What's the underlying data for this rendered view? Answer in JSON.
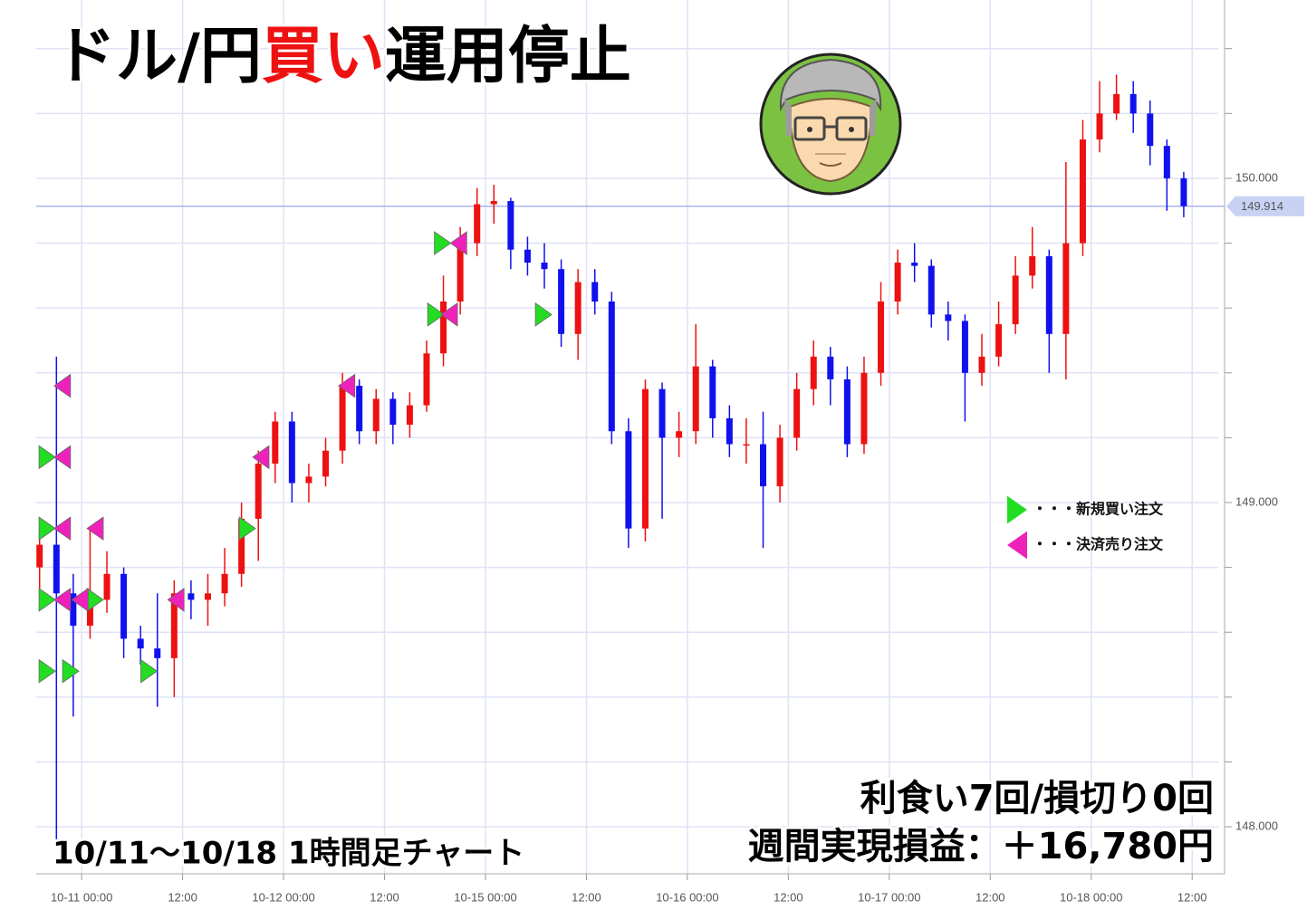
{
  "chart_data": {
    "type": "candlestick",
    "title_segments": [
      "ドル/円",
      "買い",
      "運用停止"
    ],
    "title_colors": [
      "#000000",
      "#ee1111",
      "#000000"
    ],
    "subtitle": "10/11〜10/18  1時間足チャート",
    "annotations": [
      "利食い7回/損切り0回",
      "週間実現損益：＋16,780円"
    ],
    "up_color": "#ee1111",
    "down_color": "#1111ee",
    "grid": true,
    "xlim": [
      -5.4,
      135.1
    ],
    "xticks": [
      {
        "value": 0,
        "label": "10-11 00:00"
      },
      {
        "value": 12,
        "label": "12:00"
      },
      {
        "value": 24,
        "label": "10-12 00:00"
      },
      {
        "value": 36,
        "label": "12:00"
      },
      {
        "value": 48,
        "label": "10-15 00:00"
      },
      {
        "value": 60,
        "label": "12:00"
      },
      {
        "value": 72,
        "label": "10-16 00:00"
      },
      {
        "value": 84,
        "label": "12:00"
      },
      {
        "value": 96,
        "label": "10-17 00:00"
      },
      {
        "value": 108,
        "label": "12:00"
      },
      {
        "value": 120,
        "label": "10-18 00:00"
      },
      {
        "value": 132,
        "label": "12:00"
      }
    ],
    "ylim": [
      147.855,
      150.55
    ],
    "yticks": [
      {
        "value": 148,
        "label": "148.000"
      },
      {
        "value": 149,
        "label": "149.000"
      },
      {
        "value": 150,
        "label": "150.000"
      }
    ],
    "y_gridlines": [
      148.2,
      148.4,
      148.6,
      148.8,
      149.2,
      149.4,
      149.6,
      149.8,
      150.2,
      150.4
    ],
    "current_price": 149.914,
    "x": [
      -5,
      -3,
      -1,
      1,
      3,
      5,
      7,
      9,
      11,
      13,
      15,
      17,
      19,
      21,
      23,
      25,
      27,
      29,
      31,
      33,
      35,
      37,
      39,
      41,
      43,
      45,
      47,
      49,
      51,
      53,
      55,
      57,
      59,
      61,
      63,
      65,
      67,
      69,
      71,
      73,
      75,
      77,
      79,
      81,
      83,
      85,
      87,
      89,
      91,
      93,
      95,
      97,
      99,
      101,
      103,
      105,
      107,
      109,
      111,
      113,
      115,
      117,
      119,
      121,
      123,
      125,
      127,
      129,
      131
    ],
    "open": [
      148.8,
      148.87,
      148.72,
      148.62,
      148.7,
      148.78,
      148.58,
      148.55,
      148.52,
      148.72,
      148.7,
      148.72,
      148.78,
      148.95,
      149.12,
      149.25,
      149.06,
      149.08,
      149.16,
      149.36,
      149.22,
      149.32,
      149.24,
      149.3,
      149.46,
      149.62,
      149.8,
      149.92,
      149.93,
      149.78,
      149.74,
      149.72,
      149.52,
      149.68,
      149.62,
      149.22,
      148.92,
      149.35,
      149.2,
      149.22,
      149.42,
      149.26,
      149.18,
      149.18,
      149.05,
      149.2,
      149.35,
      149.45,
      149.38,
      149.18,
      149.4,
      149.62,
      149.74,
      149.73,
      149.58,
      149.56,
      149.4,
      149.45,
      149.55,
      149.7,
      149.76,
      149.52,
      149.8,
      150.12,
      150.2,
      150.26,
      150.2,
      150.1,
      150.0
    ],
    "high": [
      148.92,
      149.45,
      148.78,
      148.92,
      148.85,
      148.8,
      148.62,
      148.72,
      148.76,
      148.76,
      148.78,
      148.86,
      149.0,
      149.16,
      149.28,
      149.28,
      149.12,
      149.2,
      149.4,
      149.38,
      149.35,
      149.34,
      149.34,
      149.5,
      149.7,
      149.85,
      149.97,
      149.98,
      149.94,
      149.82,
      149.8,
      149.75,
      149.72,
      149.72,
      149.65,
      149.26,
      149.38,
      149.37,
      149.28,
      149.55,
      149.44,
      149.3,
      149.26,
      149.28,
      149.24,
      149.4,
      149.5,
      149.48,
      149.42,
      149.45,
      149.68,
      149.78,
      149.8,
      149.75,
      149.62,
      149.58,
      149.52,
      149.62,
      149.76,
      149.85,
      149.78,
      150.05,
      150.18,
      150.3,
      150.32,
      150.3,
      150.24,
      150.12,
      150.02
    ],
    "low": [
      148.72,
      147.95,
      148.34,
      148.58,
      148.66,
      148.52,
      148.5,
      148.37,
      148.4,
      148.64,
      148.62,
      148.68,
      148.74,
      148.82,
      149.06,
      149.0,
      149.0,
      149.05,
      149.12,
      149.18,
      149.18,
      149.18,
      149.2,
      149.28,
      149.42,
      149.58,
      149.76,
      149.86,
      149.72,
      149.7,
      149.66,
      149.48,
      149.44,
      149.58,
      149.18,
      148.86,
      148.88,
      148.95,
      149.14,
      149.18,
      149.2,
      149.14,
      149.12,
      148.86,
      149.0,
      149.16,
      149.3,
      149.3,
      149.14,
      149.15,
      149.36,
      149.58,
      149.68,
      149.54,
      149.5,
      149.25,
      149.36,
      149.42,
      149.52,
      149.66,
      149.4,
      149.38,
      149.76,
      150.08,
      150.18,
      150.14,
      150.04,
      149.9,
      149.88
    ],
    "close": [
      148.87,
      148.72,
      148.62,
      148.7,
      148.78,
      148.58,
      148.55,
      148.52,
      148.72,
      148.7,
      148.72,
      148.78,
      148.95,
      149.12,
      149.25,
      149.06,
      149.08,
      149.16,
      149.36,
      149.22,
      149.32,
      149.24,
      149.3,
      149.46,
      149.62,
      149.8,
      149.92,
      149.93,
      149.78,
      149.74,
      149.72,
      149.52,
      149.68,
      149.62,
      149.22,
      148.92,
      149.35,
      149.2,
      149.22,
      149.42,
      149.26,
      149.18,
      149.18,
      149.05,
      149.2,
      149.35,
      149.45,
      149.38,
      149.18,
      149.4,
      149.62,
      149.74,
      149.73,
      149.58,
      149.56,
      149.4,
      149.45,
      149.55,
      149.7,
      149.76,
      149.52,
      149.8,
      150.12,
      150.2,
      150.26,
      150.2,
      150.1,
      150.0,
      149.914
    ],
    "orders": [
      {
        "name": "・・・新規買い注文",
        "color": "#22dd22",
        "direction": "right",
        "x": [
          -4.1,
          -4.1,
          -4.1,
          -4.1,
          -1.3,
          1.6,
          8,
          19.7,
          42.1,
          42.9,
          54.9
        ],
        "values": [
          149.14,
          148.92,
          148.7,
          148.48,
          148.48,
          148.7,
          148.48,
          148.92,
          149.58,
          149.8,
          149.58
        ]
      },
      {
        "name": "・・・決済売り注文",
        "color": "#ee22bb",
        "direction": "left",
        "x": [
          -2.3,
          -2.3,
          -2.3,
          -2.3,
          -0.2,
          1.6,
          11.2,
          21.3,
          31.5,
          43.7,
          44.8
        ],
        "values": [
          149.36,
          149.14,
          148.92,
          148.7,
          148.7,
          148.92,
          148.7,
          149.14,
          149.36,
          149.58,
          149.8
        ]
      }
    ]
  }
}
